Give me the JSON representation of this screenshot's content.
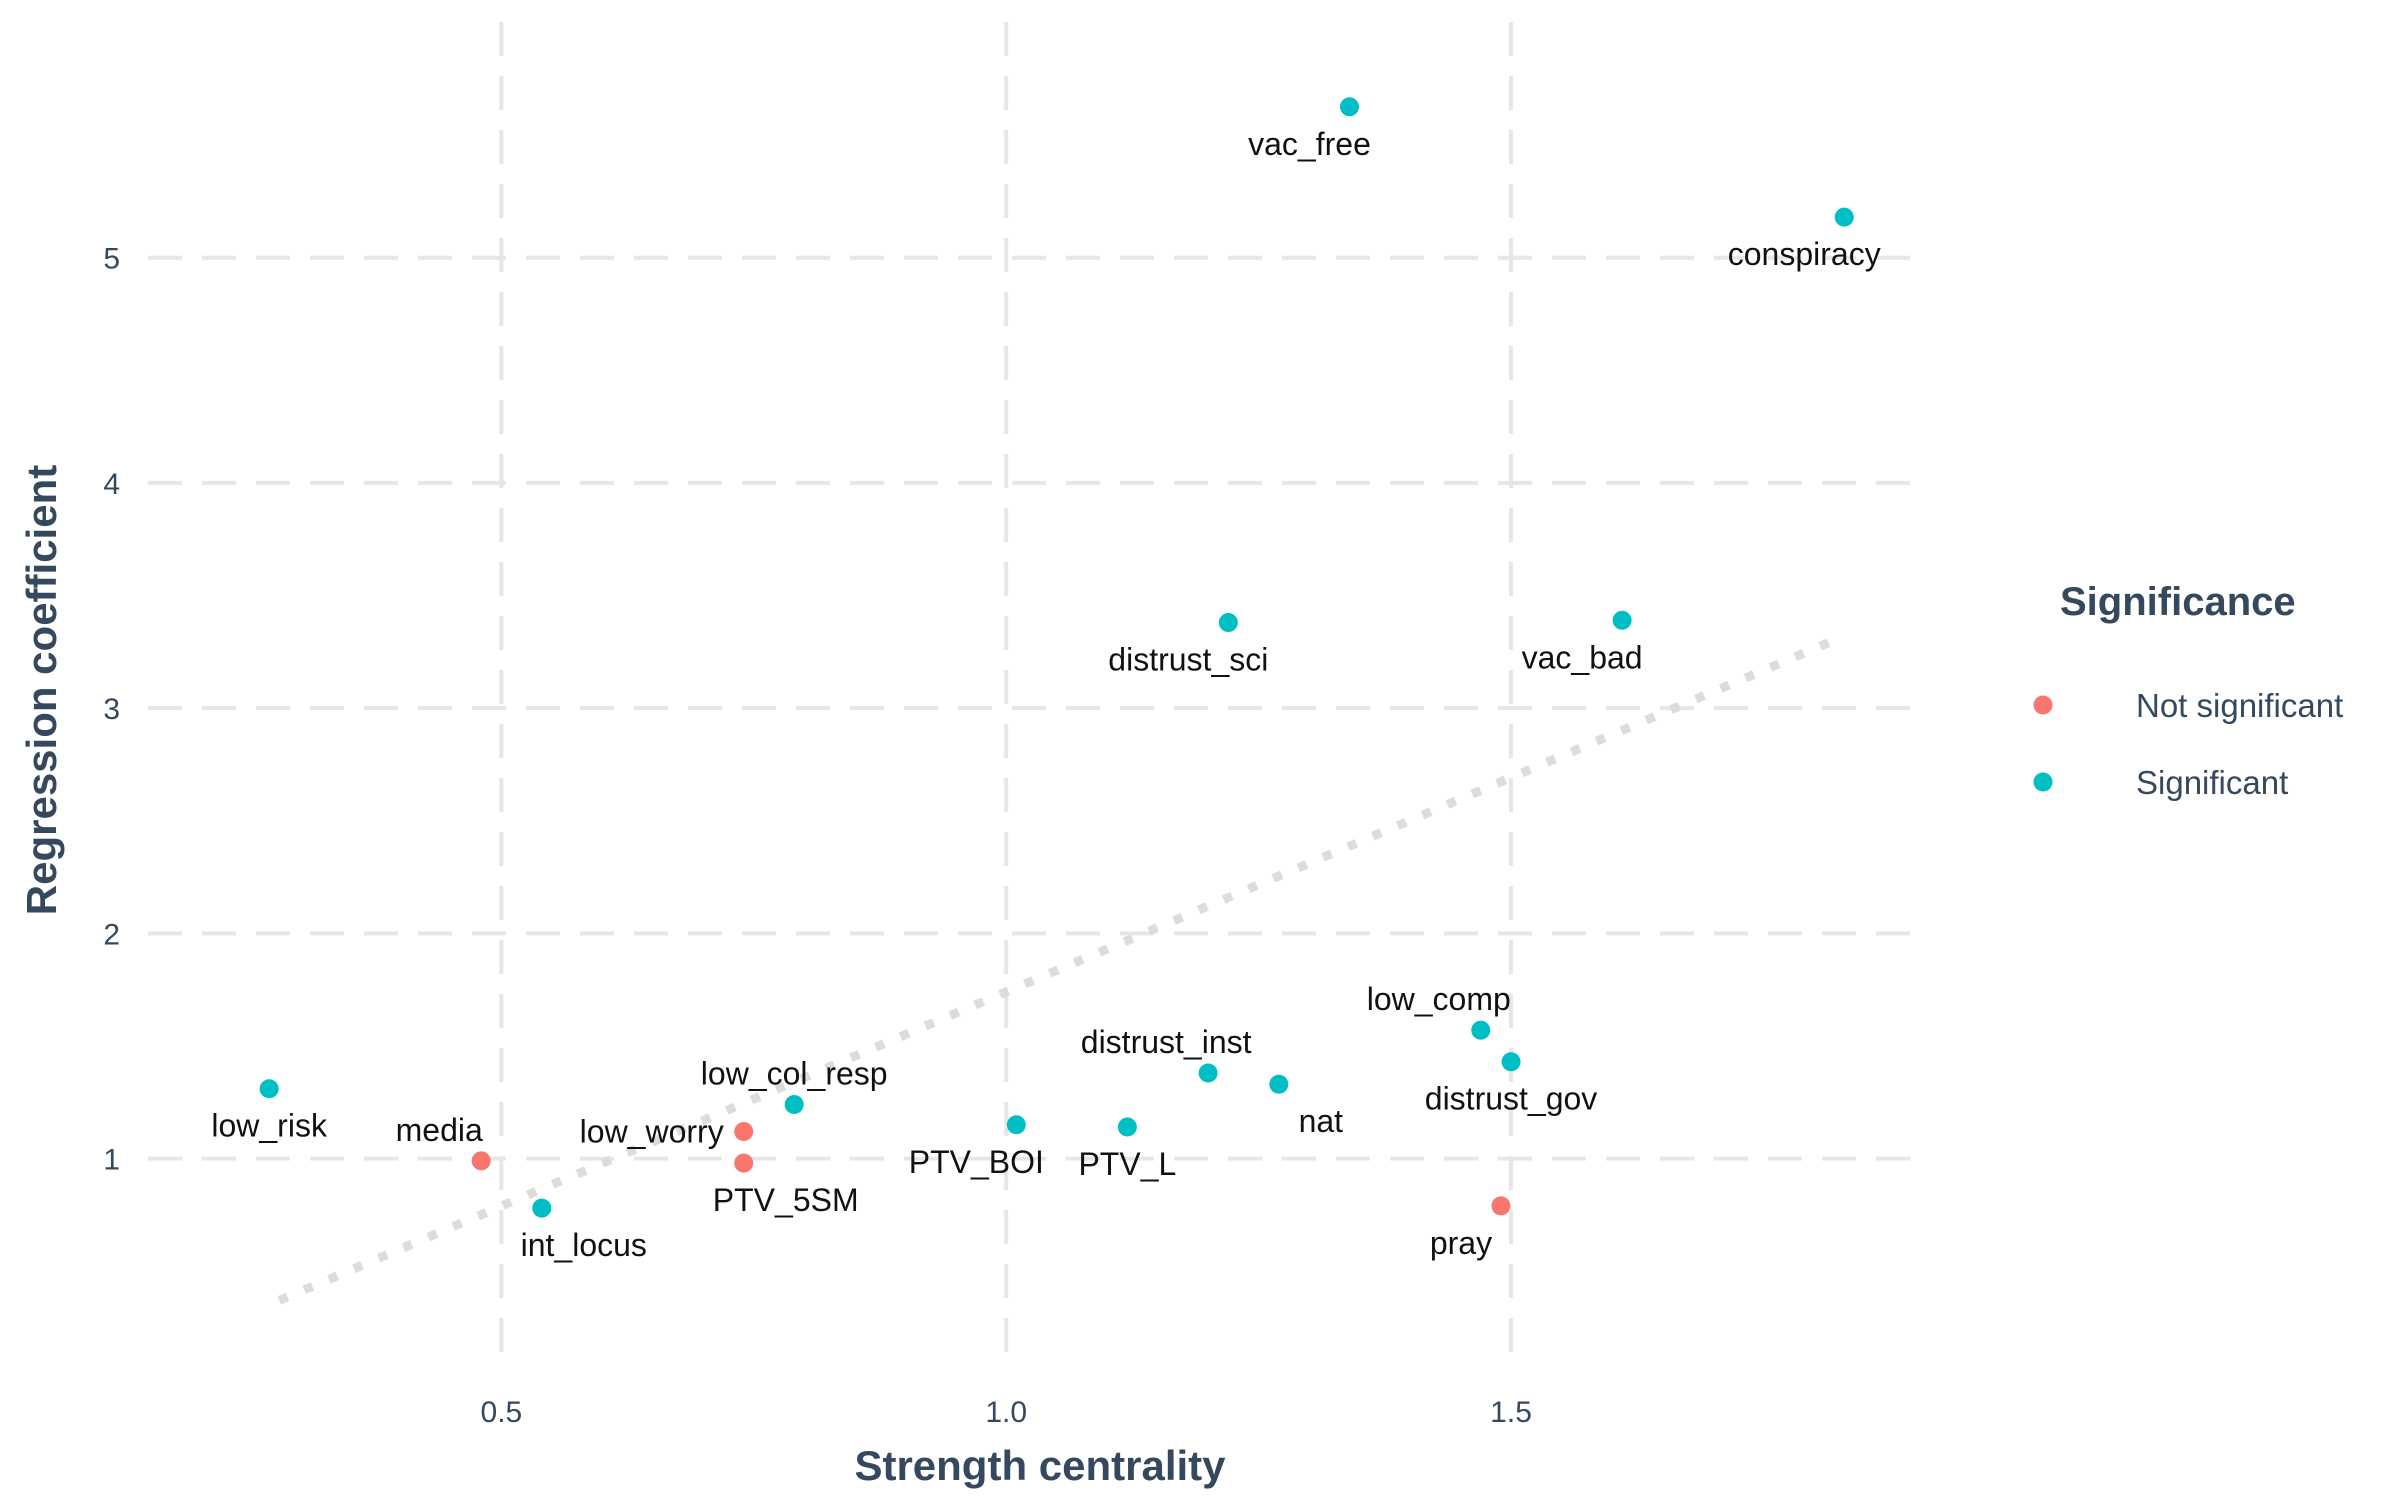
{
  "chart_data": {
    "type": "scatter",
    "title": "",
    "xlabel": "Strength centrality",
    "ylabel": "Regression coefficient",
    "xlim": [
      0.15,
      1.91
    ],
    "ylim": [
      0.15,
      5.9
    ],
    "xticks": [
      0.5,
      1.0,
      1.5
    ],
    "xtick_labels": [
      "0.5",
      "1.0",
      "1.5"
    ],
    "yticks": [
      1,
      2,
      3,
      4,
      5
    ],
    "ytick_labels": [
      "1",
      "2",
      "3",
      "4",
      "5"
    ],
    "grid": true,
    "legend": {
      "title": "Significance",
      "position": "right",
      "entries": [
        {
          "label": "Not significant",
          "color": "#F8766D"
        },
        {
          "label": "Significant",
          "color": "#00BFC4"
        }
      ]
    },
    "trend_line": {
      "x": [
        0.28,
        1.83
      ],
      "y": [
        0.37,
        3.32
      ],
      "style": "dotted"
    },
    "points": [
      {
        "label": "vac_free",
        "x": 1.34,
        "y": 5.67,
        "significance": "Significant",
        "label_pos": "below-left"
      },
      {
        "label": "conspiracy",
        "x": 1.83,
        "y": 5.18,
        "significance": "Significant",
        "label_pos": "below-left"
      },
      {
        "label": "distrust_sci",
        "x": 1.22,
        "y": 3.38,
        "significance": "Significant",
        "label_pos": "below-left"
      },
      {
        "label": "vac_bad",
        "x": 1.61,
        "y": 3.39,
        "significance": "Significant",
        "label_pos": "below-left"
      },
      {
        "label": "low_comp",
        "x": 1.47,
        "y": 1.57,
        "significance": "Significant",
        "label_pos": "above-left"
      },
      {
        "label": "distrust_gov",
        "x": 1.5,
        "y": 1.43,
        "significance": "Significant",
        "label_pos": "below"
      },
      {
        "label": "distrust_inst",
        "x": 1.2,
        "y": 1.38,
        "significance": "Significant",
        "label_pos": "above-left"
      },
      {
        "label": "nat",
        "x": 1.27,
        "y": 1.33,
        "significance": "Significant",
        "label_pos": "below-right"
      },
      {
        "label": "low_col_resp",
        "x": 0.79,
        "y": 1.24,
        "significance": "Significant",
        "label_pos": "above"
      },
      {
        "label": "PTV_BOI",
        "x": 1.01,
        "y": 1.15,
        "significance": "Significant",
        "label_pos": "below-left"
      },
      {
        "label": "PTV_L",
        "x": 1.12,
        "y": 1.14,
        "significance": "Significant",
        "label_pos": "below"
      },
      {
        "label": "low_risk",
        "x": 0.27,
        "y": 1.31,
        "significance": "Significant",
        "label_pos": "below"
      },
      {
        "label": "int_locus",
        "x": 0.54,
        "y": 0.78,
        "significance": "Significant",
        "label_pos": "below-right"
      },
      {
        "label": "media",
        "x": 0.48,
        "y": 0.99,
        "significance": "Not significant",
        "label_pos": "above-left"
      },
      {
        "label": "low_worry",
        "x": 0.74,
        "y": 1.12,
        "significance": "Not significant",
        "label_pos": "left"
      },
      {
        "label": "PTV_5SM",
        "x": 0.74,
        "y": 0.98,
        "significance": "Not significant",
        "label_pos": "below-right"
      },
      {
        "label": "pray",
        "x": 1.49,
        "y": 0.79,
        "significance": "Not significant",
        "label_pos": "below-left"
      }
    ]
  }
}
